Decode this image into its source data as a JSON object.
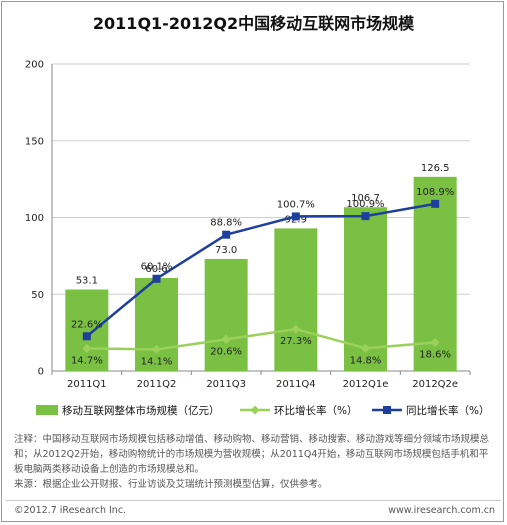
{
  "chart_data": {
    "type": "bar+line",
    "title": "2011Q1-2012Q2中国移动互联网市场规模",
    "categories": [
      "2011Q1",
      "2011Q2",
      "2011Q3",
      "2011Q4",
      "2012Q1e",
      "2012Q2e"
    ],
    "ylim": [
      0,
      200
    ],
    "yticks": [
      0,
      50,
      100,
      150,
      200
    ],
    "grid": true,
    "legend_placement": "bottom",
    "bars": {
      "name": "移动互联网整体市场规模（亿元）",
      "values": [
        53.1,
        60.6,
        73.0,
        92.9,
        106.7,
        126.5
      ],
      "labels": [
        "53.1",
        "60.6",
        "73.0",
        "92.9",
        "106.7",
        "126.5"
      ],
      "color": "#7ac143"
    },
    "series": [
      {
        "name": "环比增长率（%）",
        "values": [
          14.7,
          14.1,
          20.6,
          27.3,
          14.8,
          18.6
        ],
        "labels": [
          "14.7%",
          "14.1%",
          "20.6%",
          "27.3%",
          "14.8%",
          "18.6%"
        ],
        "color": "#9bd15a",
        "marker": "diamond"
      },
      {
        "name": "同比增长率（%）",
        "values": [
          22.6,
          60.1,
          88.8,
          100.7,
          100.9,
          108.9
        ],
        "labels": [
          "22.6%",
          "60.1%",
          "88.8%",
          "100.7%",
          "100.9%",
          "108.9%"
        ],
        "color": "#1f3f9e",
        "marker": "square"
      }
    ]
  },
  "notes": [
    "注释：中国移动互联网市场规模包括移动增值、移动购物、移动营销、移动搜索、移动游戏等细分领域市场规模总和；从2012Q2开始，移动购物统计的市场规模为营收规模；从2011Q4开始，移动互联网市场规模包括手机和平板电脑两类移动设备上创造的市场规模总和。",
    "来源：根据企业公开财报、行业访谈及艾瑞统计预测模型估算，仅供参考。"
  ],
  "footer": {
    "copyright": "©2012.7 iResearch Inc.",
    "website": "www.iresearch.com.cn"
  }
}
